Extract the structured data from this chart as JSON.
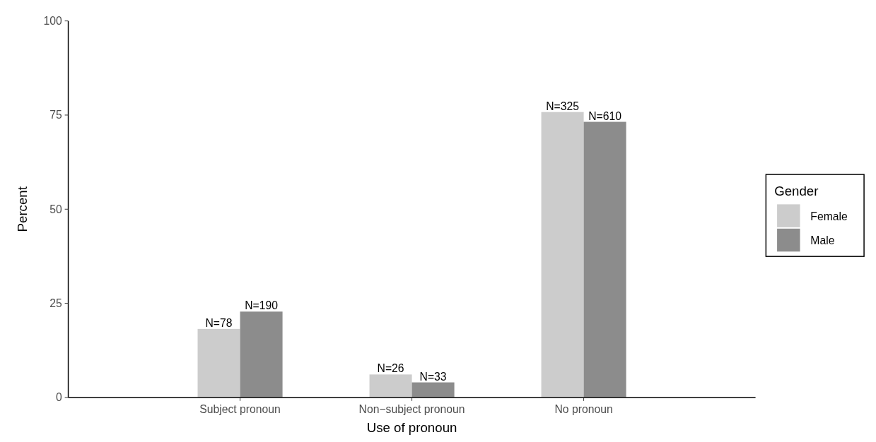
{
  "chart_data": {
    "type": "bar",
    "xlabel": "Use of pronoun",
    "ylabel": "Percent",
    "legend_title": "Gender",
    "categories": [
      "Subject pronoun",
      "Non−subject pronoun",
      "No pronoun"
    ],
    "series": [
      {
        "name": "Female",
        "color": "#cccccc",
        "values": [
          18.2,
          6.1,
          75.8
        ]
      },
      {
        "name": "Male",
        "color": "#8c8c8c",
        "values": [
          22.8,
          4.0,
          73.2
        ]
      }
    ],
    "annotations": [
      {
        "text": "N=78",
        "x": "Subject pronoun",
        "y": 18.2
      },
      {
        "text": "N=26",
        "x": "Non−subject pronoun",
        "y": 6.1
      },
      {
        "text": "N=325",
        "x": "No pronoun",
        "y": 75.8
      },
      {
        "text": "N=190",
        "x": "Subject pronoun",
        "y": 22.8
      },
      {
        "text": "N=33",
        "x": "Non−subject pronoun",
        "y": 4.0
      },
      {
        "text": "N=610",
        "x": "No pronoun",
        "y": 73.2
      }
    ],
    "ylim": [
      0,
      100
    ],
    "yticks": [
      0,
      25,
      50,
      75,
      100
    ],
    "grid": false,
    "legend": "right"
  }
}
